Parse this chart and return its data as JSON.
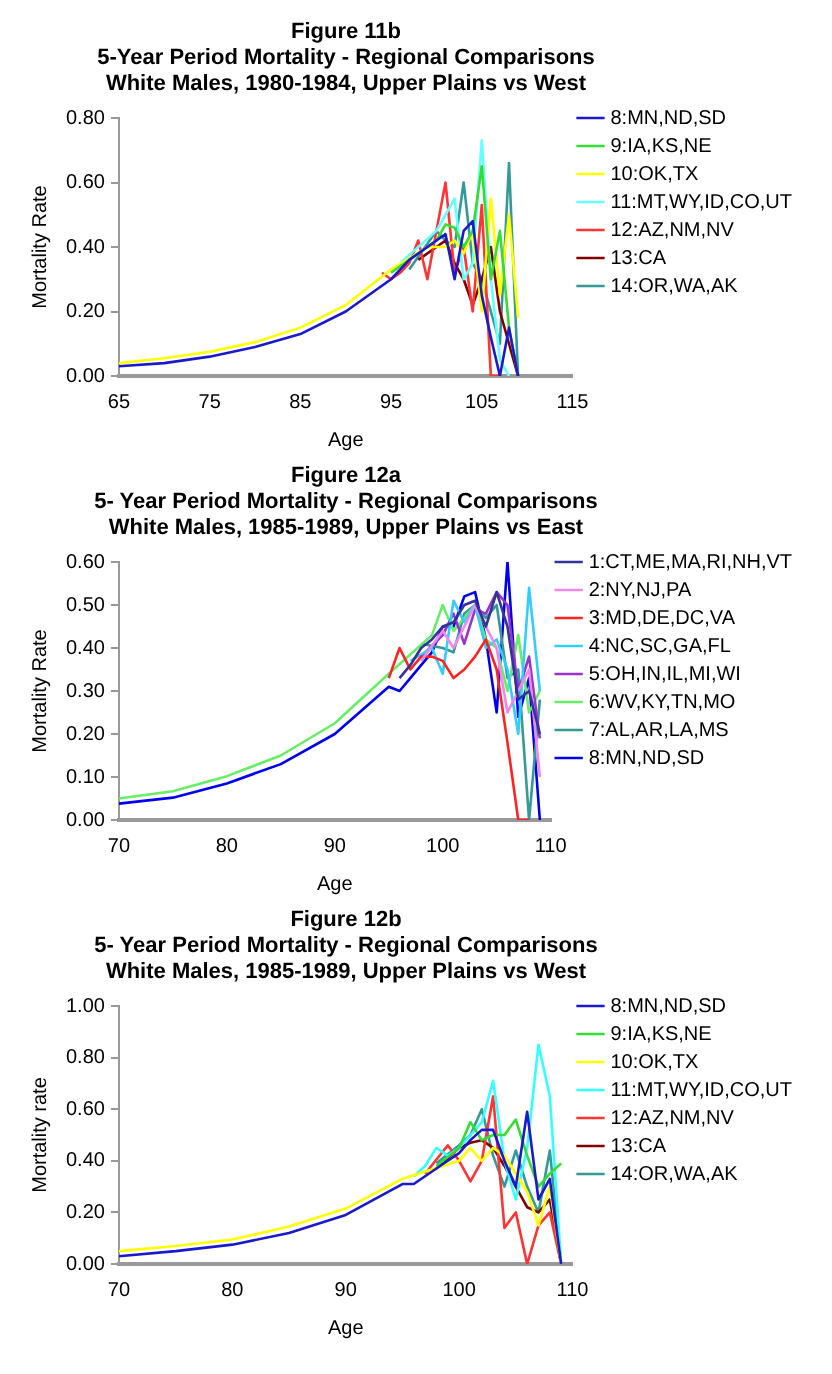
{
  "chart_data": [
    {
      "type": "line",
      "title": "Figure 11b\n5-Year Period Mortality - Regional Comparisons\nWhite Males, 1980-1984, Upper Plains vs West",
      "xlabel": "Age",
      "ylabel": "Mortality Rate",
      "xlim": [
        65,
        115
      ],
      "xticks": [
        65,
        75,
        85,
        95,
        105,
        115
      ],
      "ylim": [
        0,
        0.8
      ],
      "yticks": [
        {
          "value": 0,
          "label": "0.00"
        },
        {
          "value": 0.2,
          "label": "0.20"
        },
        {
          "value": 0.4,
          "label": "0.40"
        },
        {
          "value": 0.6,
          "label": "0.60"
        },
        {
          "value": 0.8,
          "label": "0.80"
        }
      ],
      "legend": "right",
      "marker": "none",
      "line_style": "solid",
      "series": [
        {
          "name": "8:MN,ND,SD",
          "color": "#1a1acc",
          "x": [
            65,
            70,
            75,
            80,
            85,
            90,
            95,
            96,
            97,
            98,
            99,
            100,
            101,
            102,
            103,
            104,
            105,
            106,
            107,
            108,
            109
          ],
          "values": [
            0.03,
            0.04,
            0.06,
            0.09,
            0.13,
            0.2,
            0.3,
            0.33,
            0.36,
            0.38,
            0.4,
            0.42,
            0.44,
            0.3,
            0.45,
            0.48,
            0.25,
            0.12,
            0,
            0.15,
            0
          ]
        },
        {
          "name": "9:IA,KS,NE",
          "color": "#33dd33",
          "x": [
            95,
            100,
            101,
            102,
            103,
            104,
            105,
            106,
            107,
            108,
            109
          ],
          "values": [
            0.32,
            0.42,
            0.47,
            0.46,
            0.4,
            0.45,
            0.65,
            0.3,
            0.45,
            0.15,
            0
          ]
        },
        {
          "name": "10:OK,TX",
          "color": "#ffff00",
          "x": [
            65,
            70,
            75,
            80,
            85,
            90,
            95,
            99,
            100,
            101,
            102,
            103,
            104,
            105,
            106,
            107,
            108,
            109
          ],
          "values": [
            0.04,
            0.055,
            0.075,
            0.105,
            0.15,
            0.22,
            0.33,
            0.4,
            0.4,
            0.4,
            0.42,
            0.38,
            0.45,
            0.2,
            0.55,
            0.25,
            0.5,
            0.18
          ]
        },
        {
          "name": "11:MT,WY,ID,CO,UT",
          "color": "#66ffff",
          "x": [
            96,
            100,
            101,
            102,
            103,
            104,
            105,
            106,
            107,
            108
          ],
          "values": [
            0.35,
            0.45,
            0.5,
            0.55,
            0.3,
            0.35,
            0.73,
            0.3,
            0.05,
            0
          ]
        },
        {
          "name": "12:AZ,NM,NV",
          "color": "#ff3333",
          "x": [
            94,
            95,
            96,
            97,
            98,
            99,
            100,
            101,
            102,
            103,
            104,
            105,
            106,
            107
          ],
          "values": [
            0.32,
            0.3,
            0.32,
            0.35,
            0.42,
            0.3,
            0.45,
            0.6,
            0.32,
            0.4,
            0.2,
            0.53,
            0,
            0
          ]
        },
        {
          "name": "13:CA",
          "color": "#800000",
          "x": [
            98,
            100,
            101,
            102,
            103,
            104,
            105,
            106,
            107,
            108,
            109
          ],
          "values": [
            0.36,
            0.4,
            0.42,
            0.35,
            0.3,
            0.22,
            0.3,
            0.4,
            0.2,
            0.1,
            0
          ]
        },
        {
          "name": "14:OR,WA,AK",
          "color": "#339999",
          "x": [
            97,
            100,
            101,
            102,
            103,
            104,
            105,
            106,
            107,
            108,
            109
          ],
          "values": [
            0.33,
            0.45,
            0.42,
            0.4,
            0.6,
            0.35,
            0.3,
            0.2,
            0.1,
            0.66,
            0
          ]
        }
      ]
    },
    {
      "type": "line",
      "title": "Figure 12a\n5- Year Period Mortality - Regional Comparisons\nWhite Males, 1985-1989, Upper Plains vs East",
      "xlabel": "Age",
      "ylabel": "Mortality Rate",
      "xlim": [
        70,
        110
      ],
      "xticks": [
        70,
        80,
        90,
        100,
        110
      ],
      "ylim": [
        0,
        0.6
      ],
      "yticks": [
        {
          "value": 0,
          "label": "0.00"
        },
        {
          "value": 0.1,
          "label": "0.10"
        },
        {
          "value": 0.2,
          "label": "0.20"
        },
        {
          "value": 0.3,
          "label": "0.30"
        },
        {
          "value": 0.4,
          "label": "0.40"
        },
        {
          "value": 0.5,
          "label": "0.50"
        },
        {
          "value": 0.6,
          "label": "0.60"
        }
      ],
      "legend": "right",
      "marker": "none",
      "line_style": "solid",
      "series": [
        {
          "name": "1:CT,ME,MA,RI,NH,VT",
          "color": "#333399",
          "x": [
            96,
            97,
            98,
            99,
            100,
            101,
            102,
            103,
            104,
            105,
            106,
            107,
            108,
            109
          ],
          "values": [
            0.33,
            0.36,
            0.4,
            0.42,
            0.45,
            0.46,
            0.5,
            0.51,
            0.45,
            0.53,
            0.45,
            0.28,
            0.3,
            0.2
          ]
        },
        {
          "name": "2:NY,NJ,PA",
          "color": "#ee88ee",
          "x": [
            98,
            100,
            101,
            102,
            103,
            104,
            105,
            106,
            107,
            108,
            109
          ],
          "values": [
            0.37,
            0.44,
            0.4,
            0.45,
            0.5,
            0.45,
            0.4,
            0.25,
            0.3,
            0.35,
            0.1
          ]
        },
        {
          "name": "3:MD,DE,DC,VA",
          "color": "#ff2222",
          "x": [
            95,
            96,
            97,
            98,
            99,
            100,
            101,
            102,
            103,
            104,
            105,
            106,
            107,
            108
          ],
          "values": [
            0.33,
            0.4,
            0.35,
            0.38,
            0.38,
            0.37,
            0.33,
            0.35,
            0.38,
            0.42,
            0.35,
            0.18,
            0,
            0
          ]
        },
        {
          "name": "4:NC,SC,GA,FL",
          "color": "#33ccff",
          "x": [
            97,
            99,
            100,
            101,
            102,
            103,
            104,
            105,
            106,
            107,
            108,
            109
          ],
          "values": [
            0.37,
            0.4,
            0.34,
            0.51,
            0.46,
            0.5,
            0.4,
            0.42,
            0.35,
            0.2,
            0.54,
            0.3
          ]
        },
        {
          "name": "5:OH,IN,IL,MI,WI",
          "color": "#9933cc",
          "x": [
            98,
            100,
            101,
            102,
            103,
            104,
            105,
            106,
            107,
            108,
            109
          ],
          "values": [
            0.38,
            0.43,
            0.48,
            0.41,
            0.49,
            0.48,
            0.53,
            0.5,
            0.3,
            0.38,
            0.19
          ]
        },
        {
          "name": "6:WV,KY,TN,MO",
          "color": "#66ee66",
          "x": [
            70,
            75,
            80,
            85,
            90,
            95,
            99,
            100,
            101,
            102,
            103,
            104,
            105,
            106,
            107,
            108,
            109
          ],
          "values": [
            0.05,
            0.067,
            0.102,
            0.15,
            0.225,
            0.34,
            0.43,
            0.5,
            0.44,
            0.47,
            0.5,
            0.42,
            0.4,
            0.3,
            0.43,
            0.25,
            0.3
          ]
        },
        {
          "name": "7:AL,AR,LA,MS",
          "color": "#339999",
          "x": [
            98,
            100,
            101,
            102,
            103,
            104,
            105,
            106,
            107,
            108,
            109
          ],
          "values": [
            0.41,
            0.4,
            0.39,
            0.48,
            0.5,
            0.47,
            0.5,
            0.33,
            0.35,
            0,
            0.28
          ]
        },
        {
          "name": "8:MN,ND,SD",
          "color": "#0000ee",
          "x": [
            70,
            75,
            80,
            85,
            90,
            95,
            96,
            97,
            98,
            99,
            100,
            101,
            102,
            103,
            104,
            105,
            106,
            107,
            108,
            109
          ],
          "values": [
            0.038,
            0.052,
            0.085,
            0.13,
            0.2,
            0.31,
            0.3,
            0.33,
            0.36,
            0.39,
            0.45,
            0.45,
            0.52,
            0.53,
            0.42,
            0.25,
            0.6,
            0.24,
            0.33,
            0
          ]
        }
      ]
    },
    {
      "type": "line",
      "title": "Figure 12b\n5- Year Period Mortality - Regional Comparisons\nWhite Males, 1985-1989, Upper Plains vs West",
      "xlabel": "Age",
      "ylabel": "Mortality rate",
      "xlim": [
        70,
        110
      ],
      "xticks": [
        70,
        80,
        90,
        100,
        110
      ],
      "ylim": [
        0,
        1
      ],
      "yticks": [
        {
          "value": 0,
          "label": "0.00"
        },
        {
          "value": 0.2,
          "label": "0.20"
        },
        {
          "value": 0.4,
          "label": "0.40"
        },
        {
          "value": 0.6,
          "label": "0.60"
        },
        {
          "value": 0.8,
          "label": "0.80"
        },
        {
          "value": 1,
          "label": "1.00"
        }
      ],
      "legend": "right",
      "marker": "none",
      "line_style": "solid",
      "series": [
        {
          "name": "8:MN,ND,SD",
          "color": "#1a1acc",
          "x": [
            70,
            75,
            80,
            85,
            90,
            95,
            96,
            97,
            98,
            99,
            100,
            101,
            102,
            103,
            104,
            105,
            106,
            107,
            108,
            109
          ],
          "values": [
            0.03,
            0.05,
            0.075,
            0.12,
            0.19,
            0.31,
            0.31,
            0.34,
            0.37,
            0.4,
            0.43,
            0.48,
            0.52,
            0.52,
            0.4,
            0.3,
            0.59,
            0.25,
            0.33,
            0
          ]
        },
        {
          "name": "9:IA,KS,NE",
          "color": "#33dd33",
          "x": [
            98,
            100,
            101,
            102,
            103,
            104,
            105,
            106,
            107,
            108,
            109
          ],
          "values": [
            0.38,
            0.45,
            0.55,
            0.48,
            0.5,
            0.5,
            0.56,
            0.42,
            0.3,
            0.35,
            0.39
          ]
        },
        {
          "name": "10:OK,TX",
          "color": "#ffff00",
          "x": [
            70,
            75,
            80,
            85,
            90,
            95,
            100,
            101,
            102,
            103,
            104,
            105,
            106,
            107,
            108,
            109
          ],
          "values": [
            0.05,
            0.07,
            0.095,
            0.145,
            0.215,
            0.33,
            0.4,
            0.45,
            0.4,
            0.45,
            0.42,
            0.35,
            0.28,
            0.15,
            0.3,
            0
          ]
        },
        {
          "name": "11:MT,WY,ID,CO,UT",
          "color": "#33ffff",
          "x": [
            96,
            97,
            98,
            99,
            100,
            101,
            102,
            103,
            104,
            105,
            106,
            107,
            108,
            109
          ],
          "values": [
            0.34,
            0.38,
            0.45,
            0.42,
            0.45,
            0.5,
            0.55,
            0.71,
            0.4,
            0.25,
            0.45,
            0.85,
            0.65,
            0
          ]
        },
        {
          "name": "12:AZ,NM,NV",
          "color": "#ff3333",
          "x": [
            97,
            99,
            100,
            101,
            102,
            103,
            104,
            105,
            106,
            107,
            108,
            109
          ],
          "values": [
            0.35,
            0.46,
            0.4,
            0.32,
            0.4,
            0.65,
            0.14,
            0.2,
            0,
            0.15,
            0.2,
            0
          ]
        },
        {
          "name": "13:CA",
          "color": "#800000",
          "x": [
            98,
            100,
            101,
            102,
            103,
            104,
            105,
            106,
            107,
            108,
            109
          ],
          "values": [
            0.37,
            0.45,
            0.47,
            0.48,
            0.45,
            0.38,
            0.3,
            0.22,
            0.2,
            0.25,
            0
          ]
        },
        {
          "name": "14:OR,WA,AK",
          "color": "#339999",
          "x": [
            98,
            100,
            101,
            102,
            103,
            104,
            105,
            106,
            107,
            108,
            109
          ],
          "values": [
            0.39,
            0.46,
            0.5,
            0.6,
            0.42,
            0.3,
            0.44,
            0.3,
            0.2,
            0.44,
            0
          ]
        }
      ]
    }
  ]
}
